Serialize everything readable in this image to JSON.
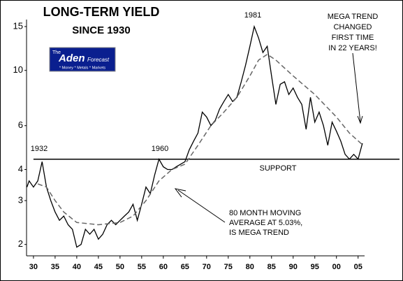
{
  "chart_data": {
    "type": "line",
    "title": "LONG-TERM YIELD",
    "subtitle": "SINCE 1930",
    "logo": {
      "small": "The",
      "name": "Aden",
      "word": "Forecast",
      "tagline": "* Money * Metals * Markets"
    },
    "annotations": {
      "y1932": "1932",
      "y1960": "1960",
      "y1981": "1981",
      "support": "SUPPORT",
      "megatrend": [
        "MEGA TREND",
        "CHANGED",
        "FIRST TIME",
        "IN 22 YEARS!"
      ],
      "moving_average": [
        "80 MONTH MOVING",
        "AVERAGE AT 5.03%,",
        "IS MEGA TREND"
      ]
    },
    "log_y": true,
    "support_level": 4.4,
    "xlim": [
      1928.4,
      2006.5
    ],
    "ylim": [
      1.8,
      16
    ],
    "yticks": [
      2,
      3,
      4,
      6,
      10,
      15
    ],
    "xticks": [
      {
        "value": 1930,
        "label": "30"
      },
      {
        "value": 1935,
        "label": "35"
      },
      {
        "value": 1940,
        "label": "40"
      },
      {
        "value": 1945,
        "label": "45"
      },
      {
        "value": 1950,
        "label": "50"
      },
      {
        "value": 1955,
        "label": "55"
      },
      {
        "value": 1960,
        "label": "60"
      },
      {
        "value": 1965,
        "label": "65"
      },
      {
        "value": 1970,
        "label": "70"
      },
      {
        "value": 1975,
        "label": "75"
      },
      {
        "value": 1980,
        "label": "80"
      },
      {
        "value": 1985,
        "label": "85"
      },
      {
        "value": 1990,
        "label": "90"
      },
      {
        "value": 1995,
        "label": "95"
      },
      {
        "value": 2000,
        "label": "00"
      },
      {
        "value": 2005,
        "label": "05"
      }
    ],
    "series": [
      {
        "color": "#000000",
        "dashed": false,
        "x": [
          1928.5,
          1929,
          1930,
          1931,
          1932,
          1933,
          1934,
          1935,
          1936,
          1937,
          1938,
          1939,
          1940,
          1941,
          1942,
          1943,
          1944,
          1945,
          1946,
          1947,
          1948,
          1949,
          1950,
          1951,
          1952,
          1953,
          1954,
          1955,
          1956,
          1957,
          1958,
          1959,
          1960,
          1961,
          1962,
          1963,
          1964,
          1965,
          1966,
          1967,
          1968,
          1969,
          1970,
          1971,
          1972,
          1973,
          1974,
          1975,
          1976,
          1977,
          1978,
          1979,
          1980,
          1981,
          1982,
          1983,
          1984,
          1985,
          1986,
          1987,
          1988,
          1989,
          1990,
          1991,
          1992,
          1993,
          1994,
          1995,
          1996,
          1997,
          1998,
          1999,
          2000,
          2001,
          2002,
          2003,
          2004,
          2005,
          2006
        ],
        "values": [
          3.4,
          3.6,
          3.4,
          3.6,
          4.3,
          3.4,
          3.0,
          2.7,
          2.5,
          2.6,
          2.4,
          2.3,
          1.95,
          2.0,
          2.3,
          2.2,
          2.3,
          2.1,
          2.2,
          2.4,
          2.5,
          2.4,
          2.5,
          2.6,
          2.7,
          2.9,
          2.5,
          2.9,
          3.4,
          3.2,
          3.8,
          4.4,
          4.1,
          4.0,
          4.0,
          4.1,
          4.2,
          4.3,
          4.8,
          5.2,
          5.6,
          6.8,
          6.5,
          6.0,
          6.3,
          7.0,
          7.5,
          8.0,
          7.5,
          7.8,
          9.0,
          10.5,
          12.5,
          15.0,
          13.5,
          11.8,
          12.5,
          9.5,
          7.3,
          8.8,
          9.0,
          8.0,
          8.5,
          7.8,
          7.3,
          5.8,
          7.8,
          6.2,
          6.8,
          6.0,
          5.0,
          6.2,
          5.7,
          5.2,
          4.6,
          4.4,
          4.6,
          4.4,
          5.1
        ]
      },
      {
        "color": "#666666",
        "dashed": true,
        "x": [
          1931,
          1933,
          1935,
          1937,
          1940,
          1945,
          1950,
          1953,
          1956,
          1959,
          1962,
          1965,
          1968,
          1971,
          1974,
          1977,
          1980,
          1982,
          1984,
          1986,
          1990,
          1995,
          2000,
          2003,
          2006
        ],
        "values": [
          3.5,
          3.4,
          3.0,
          2.7,
          2.45,
          2.4,
          2.45,
          2.6,
          3.0,
          3.6,
          4.0,
          4.2,
          5.0,
          6.0,
          6.8,
          7.8,
          9.5,
          11.0,
          11.6,
          11.0,
          9.5,
          8.0,
          6.5,
          5.6,
          5.03
        ]
      }
    ]
  }
}
